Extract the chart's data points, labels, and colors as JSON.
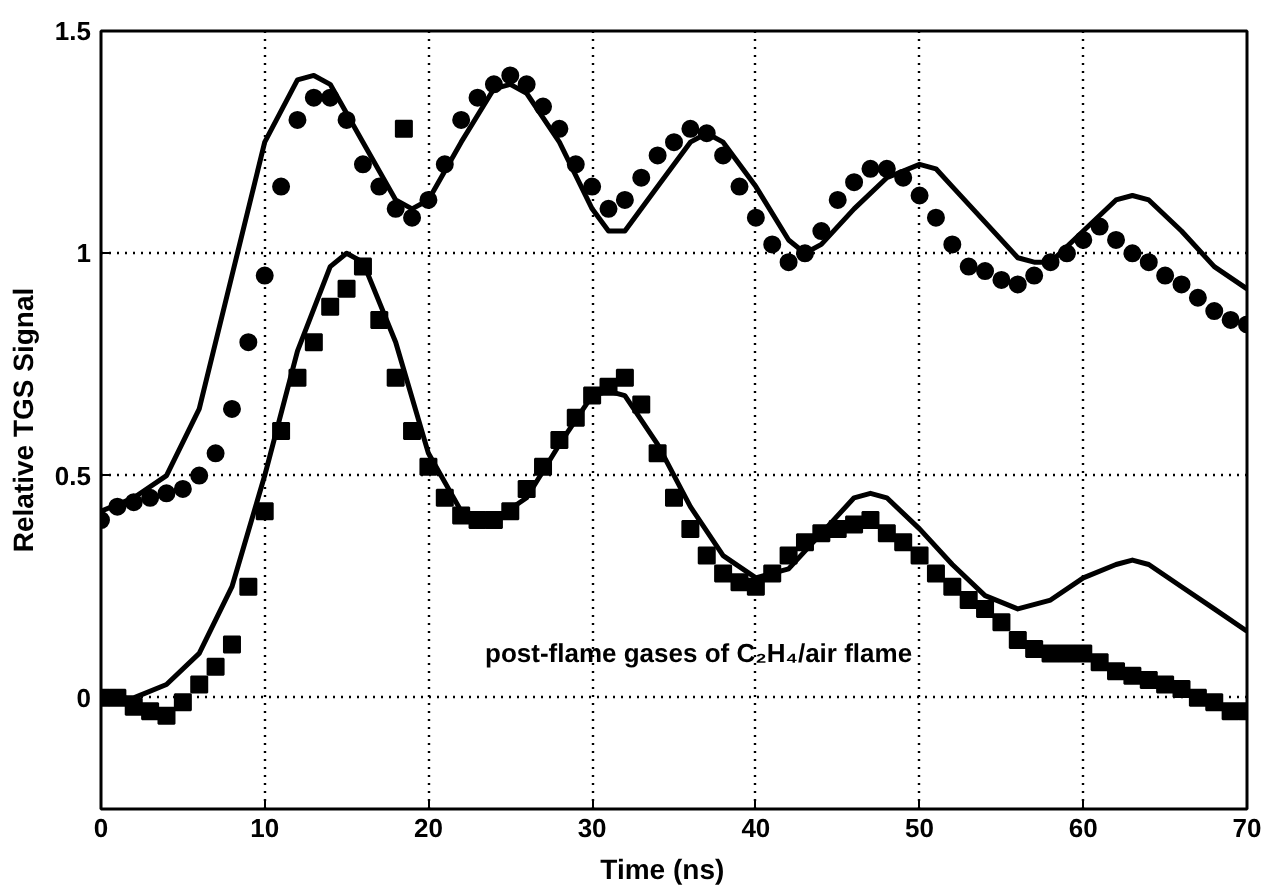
{
  "chart_data": {
    "type": "scatter",
    "xlabel": "Time    (ns)",
    "ylabel": "Relative TGS Signal",
    "xlim": [
      0,
      70
    ],
    "ylim": [
      -0.25,
      1.5
    ],
    "xticks": [
      0,
      10,
      20,
      30,
      40,
      50,
      60,
      70
    ],
    "yticks": [
      0,
      0.5,
      1,
      1.5
    ],
    "grid": true,
    "annotations": [
      "post-flame gases of C₂H₄/air flame"
    ],
    "series": [
      {
        "marker": "circle",
        "color": "#000000",
        "x": [
          0,
          1,
          2,
          3,
          4,
          5,
          6,
          7,
          8,
          9,
          10,
          11,
          12,
          13,
          14,
          15,
          16,
          17,
          18,
          19,
          20,
          21,
          22,
          23,
          24,
          25,
          26,
          27,
          28,
          29,
          30,
          31,
          32,
          33,
          34,
          35,
          36,
          37,
          38,
          39,
          40,
          41,
          42,
          43,
          44,
          45,
          46,
          47,
          48,
          49,
          50,
          51,
          52,
          53,
          54,
          55,
          56,
          57,
          58,
          59,
          60,
          61,
          62,
          63,
          64,
          65,
          66,
          67,
          68,
          69,
          70
        ],
        "values": [
          0.4,
          0.43,
          0.44,
          0.45,
          0.46,
          0.47,
          0.5,
          0.55,
          0.65,
          0.8,
          0.95,
          1.15,
          1.3,
          1.35,
          1.35,
          1.3,
          1.2,
          1.15,
          1.1,
          1.08,
          1.12,
          1.2,
          1.3,
          1.35,
          1.38,
          1.4,
          1.38,
          1.33,
          1.28,
          1.2,
          1.15,
          1.1,
          1.12,
          1.17,
          1.22,
          1.25,
          1.28,
          1.27,
          1.22,
          1.15,
          1.08,
          1.02,
          0.98,
          1.0,
          1.05,
          1.12,
          1.16,
          1.19,
          1.19,
          1.17,
          1.13,
          1.08,
          1.02,
          0.97,
          0.96,
          0.94,
          0.93,
          0.95,
          0.98,
          1.0,
          1.03,
          1.06,
          1.03,
          1.0,
          0.98,
          0.95,
          0.93,
          0.9,
          0.87,
          0.85,
          0.84
        ]
      },
      {
        "type": "line",
        "color": "#000000",
        "x": [
          0,
          2,
          4,
          6,
          8,
          10,
          12,
          13,
          14,
          16,
          18,
          19,
          20,
          22,
          24,
          25,
          26,
          28,
          30,
          31,
          32,
          34,
          36,
          37,
          38,
          40,
          42,
          43,
          44,
          46,
          48,
          50,
          51,
          52,
          54,
          56,
          57,
          58,
          60,
          62,
          63,
          64,
          66,
          68,
          70
        ],
        "values": [
          0.42,
          0.45,
          0.5,
          0.65,
          0.95,
          1.25,
          1.39,
          1.4,
          1.38,
          1.25,
          1.12,
          1.1,
          1.12,
          1.25,
          1.37,
          1.38,
          1.36,
          1.25,
          1.1,
          1.05,
          1.05,
          1.15,
          1.25,
          1.27,
          1.25,
          1.15,
          1.03,
          1.0,
          1.02,
          1.1,
          1.17,
          1.2,
          1.19,
          1.15,
          1.07,
          0.99,
          0.98,
          0.98,
          1.05,
          1.12,
          1.13,
          1.12,
          1.05,
          0.97,
          0.92
        ]
      },
      {
        "marker": "square",
        "color": "#000000",
        "x": [
          0,
          1,
          2,
          3,
          4,
          5,
          6,
          7,
          8,
          9,
          10,
          11,
          12,
          13,
          14,
          15,
          16,
          17,
          18,
          18.5,
          19,
          20,
          21,
          22,
          23,
          24,
          25,
          26,
          27,
          28,
          29,
          30,
          31,
          32,
          33,
          34,
          35,
          36,
          37,
          38,
          39,
          40,
          41,
          42,
          43,
          44,
          45,
          46,
          47,
          48,
          49,
          50,
          51,
          52,
          53,
          54,
          55,
          56,
          57,
          58,
          59,
          60,
          61,
          62,
          63,
          64,
          65,
          66,
          67,
          68,
          69,
          70
        ],
        "values": [
          0.0,
          0.0,
          -0.02,
          -0.03,
          -0.04,
          -0.01,
          0.03,
          0.07,
          0.12,
          0.25,
          0.42,
          0.6,
          0.72,
          0.8,
          0.88,
          0.92,
          0.97,
          0.85,
          0.72,
          1.28,
          0.6,
          0.52,
          0.45,
          0.41,
          0.4,
          0.4,
          0.42,
          0.47,
          0.52,
          0.58,
          0.63,
          0.68,
          0.7,
          0.72,
          0.66,
          0.55,
          0.45,
          0.38,
          0.32,
          0.28,
          0.26,
          0.25,
          0.28,
          0.32,
          0.35,
          0.37,
          0.38,
          0.39,
          0.4,
          0.37,
          0.35,
          0.32,
          0.28,
          0.25,
          0.22,
          0.2,
          0.17,
          0.13,
          0.11,
          0.1,
          0.1,
          0.1,
          0.08,
          0.06,
          0.05,
          0.04,
          0.03,
          0.02,
          0.0,
          -0.01,
          -0.03,
          -0.03
        ]
      },
      {
        "type": "line",
        "color": "#000000",
        "x": [
          0,
          2,
          4,
          6,
          8,
          10,
          12,
          14,
          15,
          16,
          18,
          20,
          22,
          24,
          26,
          28,
          30,
          31,
          32,
          34,
          36,
          38,
          40,
          42,
          44,
          46,
          47,
          48,
          50,
          52,
          54,
          56,
          58,
          60,
          62,
          63,
          64,
          66,
          68,
          70
        ],
        "values": [
          0.0,
          0.0,
          0.03,
          0.1,
          0.25,
          0.5,
          0.78,
          0.97,
          1.0,
          0.98,
          0.8,
          0.55,
          0.42,
          0.4,
          0.45,
          0.57,
          0.68,
          0.69,
          0.68,
          0.57,
          0.43,
          0.32,
          0.27,
          0.29,
          0.37,
          0.45,
          0.46,
          0.45,
          0.38,
          0.3,
          0.23,
          0.2,
          0.22,
          0.27,
          0.3,
          0.31,
          0.3,
          0.25,
          0.2,
          0.15
        ]
      }
    ]
  }
}
